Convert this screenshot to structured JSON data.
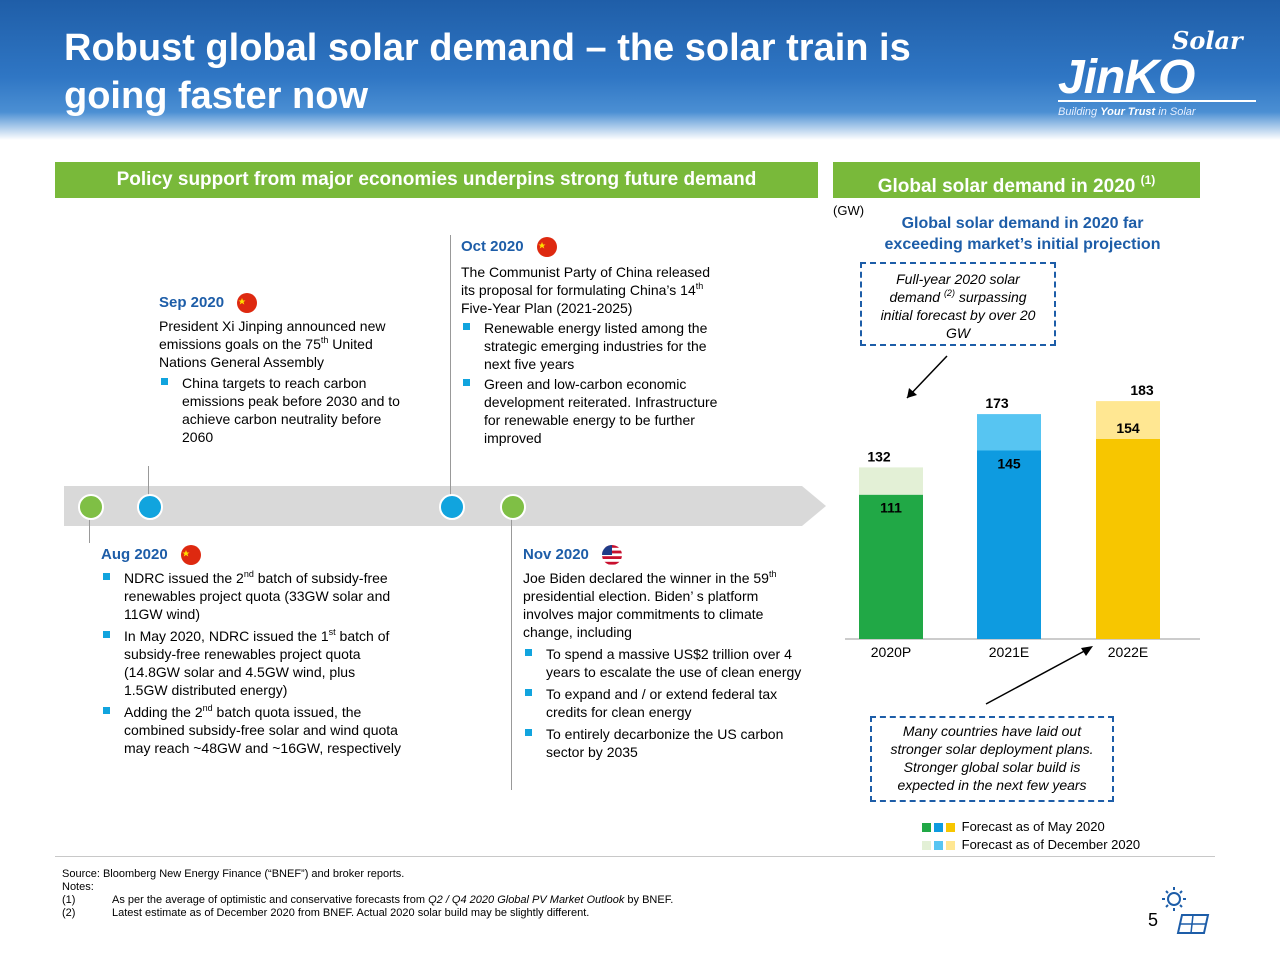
{
  "title": "Robust global solar demand – the solar train is going faster now",
  "logo": {
    "script": "Solar",
    "main": "JinKO",
    "tag_1": "Building ",
    "tag_2": "Your Trust",
    "tag_3": " in Solar"
  },
  "left_band": "Policy support from major economies underpins strong future demand",
  "right_band": {
    "text": "Global solar demand in 2020",
    "sup": "(1)"
  },
  "events": {
    "sep": {
      "head": "Sep 2020",
      "p1": "President Xi Jinping announced new emissions goals on the 75",
      "p1_sup": "th",
      "p1_end": " United Nations General Assembly",
      "b1": "China targets to reach carbon emissions peak before 2030 and to achieve carbon neutrality before 2060"
    },
    "oct": {
      "head": "Oct 2020",
      "p1": "The Communist Party of China released its proposal for formulating China’s 14",
      "p1_sup": "th",
      "p1_end": " Five-Year Plan (2021-2025)",
      "b1": "Renewable energy listed among the strategic emerging industries for the next five years",
      "b2": "Green and low-carbon economic development reiterated. Infrastructure for renewable energy to be further improved"
    },
    "aug": {
      "head": "Aug 2020",
      "b1a": "NDRC issued the 2",
      "b1_sup": "nd",
      "b1b": " batch of subsidy-free renewables project quota (33GW solar and 11GW wind)",
      "b2a": "In May 2020, NDRC issued the 1",
      "b2_sup": "st",
      "b2b": " batch of subsidy-free renewables project quota (14.8GW solar and 4.5GW wind, plus 1.5GW distributed energy)",
      "b3a": "Adding the 2",
      "b3_sup": "nd",
      "b3b": " batch quota issued, the combined subsidy-free solar and wind quota may reach ~48GW and ~16GW, respectively"
    },
    "nov": {
      "head": "Nov 2020",
      "p1a": "Joe Biden declared the winner in the 59",
      "p1_sup": "th",
      "p1b": " presidential election. Biden’ s platform involves major commitments to climate change, including",
      "b1": "To spend a massive US$2 trillion over 4 years to escalate the use of clean energy",
      "b2": "To expand and / or extend federal tax credits for clean energy",
      "b3": "To entirely decarbonize the US carbon sector by 2035"
    }
  },
  "chart_labels": {
    "unit": "(GW)",
    "title_1": "Global solar demand in 2020 far",
    "title_2": "exceeding market’s initial projection",
    "box_top_1": "Full-year 2020 solar",
    "box_top_2a": "demand ",
    "box_top_sup": "(2)",
    "box_top_2b": " surpassing",
    "box_top_3": "initial forecast by over 20",
    "box_top_4": "GW",
    "box_bottom": "Many countries have laid out stronger solar deployment plans. Stronger global solar build is expected in the next few years",
    "legend_1": "Forecast as of May 2020",
    "legend_2": "Forecast as of December 2020"
  },
  "chart_data": {
    "type": "bar",
    "stacked": true,
    "categories": [
      "2020P",
      "2021E",
      "2022E"
    ],
    "series": [
      {
        "name": "Forecast as of May 2020",
        "values": [
          111,
          145,
          154
        ]
      },
      {
        "name": "Forecast as of December 2020",
        "values": [
          21,
          28,
          29
        ]
      }
    ],
    "totals": [
      132,
      173,
      183
    ],
    "colors": {
      "may": [
        "#21a846",
        "#0e9be0",
        "#f7c600"
      ],
      "dec": [
        "#e3f0d6",
        "#57c5f2",
        "#ffe792"
      ]
    },
    "ylim": [
      0,
      200
    ]
  },
  "footer": {
    "source": "Source: Bloomberg New Energy Finance (“BNEF”) and broker reports.",
    "notes": "Notes:",
    "n1_num": "(1)",
    "n1a": "As per the average of optimistic and conservative forecasts from ",
    "n1i": "Q2 / Q4 2020 Global PV Market Outlook",
    "n1b": " by BNEF.",
    "n2_num": "(2)",
    "n2": "Latest estimate as of December 2020 from BNEF. Actual 2020 solar build may be slightly different.",
    "page": "5"
  },
  "colors": {
    "accent_blue": "#1d5da8",
    "band_green": "#79b93a",
    "dot_green": "#7fbf45",
    "dot_blue": "#11a4de"
  }
}
